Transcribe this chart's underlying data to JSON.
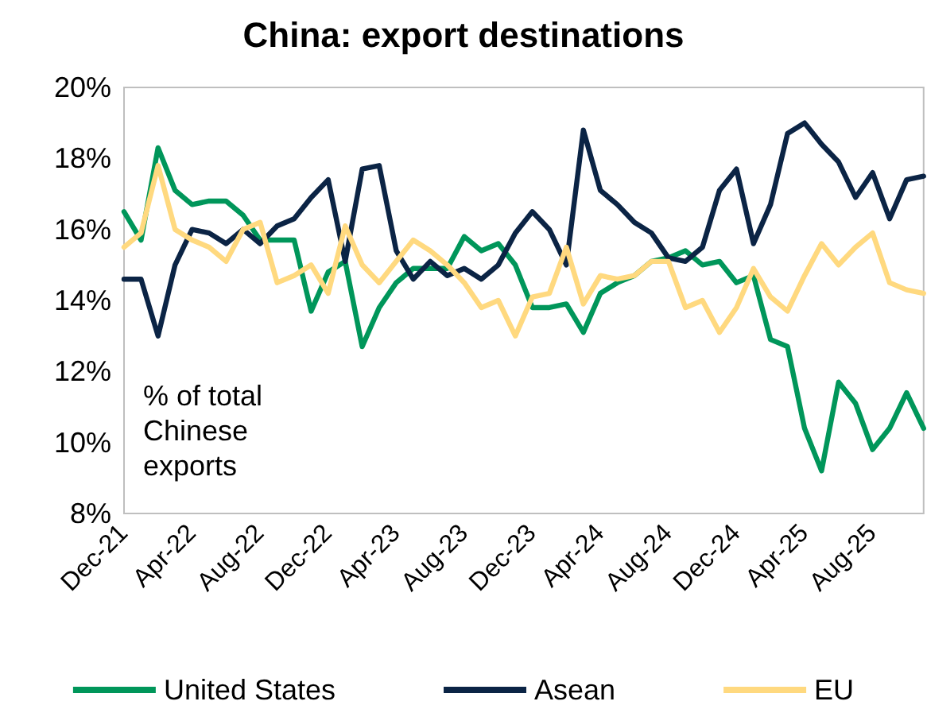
{
  "chart_data": {
    "type": "line",
    "title": "China: export destinations",
    "annotations": [
      "% of total Chinese exports"
    ],
    "categories": [
      "Dec-21",
      null,
      null,
      null,
      "Apr-22",
      null,
      null,
      null,
      "Aug-22",
      null,
      null,
      null,
      "Dec-22",
      null,
      null,
      null,
      "Apr-23",
      null,
      null,
      null,
      "Aug-23",
      null,
      null,
      null,
      "Dec-23",
      null,
      null,
      null,
      "Apr-24",
      null,
      null,
      null,
      "Aug-24",
      null,
      null,
      null,
      "Dec-24",
      null,
      null,
      null,
      "Apr-25",
      null,
      null,
      null,
      "Aug-25",
      null,
      null,
      null
    ],
    "series": [
      {
        "name": "United States",
        "color": "#00965a",
        "values": [
          16.5,
          15.7,
          18.3,
          17.1,
          16.7,
          16.8,
          16.8,
          16.4,
          15.7,
          15.7,
          15.7,
          13.7,
          14.8,
          15.1,
          12.7,
          13.8,
          14.5,
          14.9,
          14.9,
          14.9,
          15.8,
          15.4,
          15.6,
          15.0,
          13.8,
          13.8,
          13.9,
          13.1,
          14.2,
          14.5,
          14.7,
          15.1,
          15.2,
          15.4,
          15.0,
          15.1,
          14.5,
          14.7,
          12.9,
          12.7,
          10.4,
          9.2,
          11.7,
          11.1,
          9.8,
          10.4,
          11.4,
          10.4
        ]
      },
      {
        "name": "Asean",
        "color": "#0b2445",
        "values": [
          14.6,
          14.6,
          13.0,
          15.0,
          16.0,
          15.9,
          15.6,
          16.0,
          15.6,
          16.1,
          16.3,
          16.9,
          17.4,
          15.1,
          17.7,
          17.8,
          15.4,
          14.6,
          15.1,
          14.7,
          14.9,
          14.6,
          15.0,
          15.9,
          16.5,
          16.0,
          15.0,
          18.8,
          17.1,
          16.7,
          16.2,
          15.9,
          15.2,
          15.1,
          15.5,
          17.1,
          17.7,
          15.6,
          16.7,
          18.7,
          19.0,
          18.4,
          17.9,
          16.9,
          17.6,
          16.3,
          17.4,
          17.5
        ]
      },
      {
        "name": "EU",
        "color": "#ffd97f",
        "values": [
          15.5,
          15.9,
          17.8,
          16.0,
          15.7,
          15.5,
          15.1,
          16.0,
          16.2,
          14.5,
          14.7,
          15.0,
          14.2,
          16.1,
          15.0,
          14.5,
          15.1,
          15.7,
          15.4,
          15.0,
          14.5,
          13.8,
          14.0,
          13.0,
          14.1,
          14.2,
          15.5,
          13.9,
          14.7,
          14.6,
          14.7,
          15.1,
          15.1,
          13.8,
          14.0,
          13.1,
          13.8,
          14.9,
          14.1,
          13.7,
          14.7,
          15.6,
          15.0,
          15.5,
          15.9,
          14.5,
          14.3,
          14.2
        ]
      }
    ],
    "ylim": [
      8,
      20
    ],
    "yticks": [
      {
        "value": 8,
        "label": "8%"
      },
      {
        "value": 10,
        "label": "10%"
      },
      {
        "value": 12,
        "label": "12%"
      },
      {
        "value": 14,
        "label": "14%"
      },
      {
        "value": 16,
        "label": "16%"
      },
      {
        "value": 18,
        "label": "18%"
      },
      {
        "value": 20,
        "label": "20%"
      }
    ],
    "grid": false,
    "legend": "bottom",
    "marker": "none",
    "line_style": "solid"
  }
}
